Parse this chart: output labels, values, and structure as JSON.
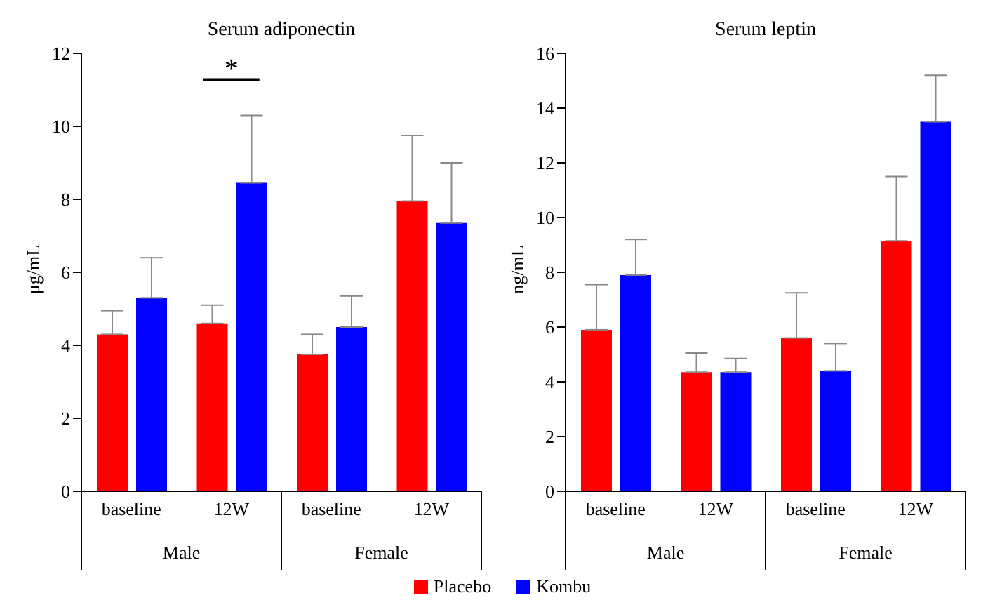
{
  "chart_data": [
    {
      "type": "bar",
      "title": "Serum adiponectin",
      "ylabel": "μg/mL",
      "categories": [
        "baseline",
        "12W",
        "baseline",
        "12W"
      ],
      "ylim": [
        0,
        12
      ],
      "yticks": [
        0,
        2,
        4,
        6,
        8,
        10,
        12
      ],
      "legend": "bottom",
      "series": [
        {
          "name": "Placebo",
          "color": "#ff0000",
          "values": [
            4.3,
            4.6,
            3.75,
            7.95
          ],
          "errors": [
            [
              4.3,
              4.95
            ],
            [
              4.6,
              5.1
            ],
            [
              3.75,
              4.3
            ],
            [
              7.95,
              9.75
            ]
          ]
        },
        {
          "name": "Kombu",
          "color": "#0000ff",
          "values": [
            5.3,
            8.45,
            4.5,
            7.35
          ],
          "errors": [
            [
              5.3,
              6.4
            ],
            [
              8.45,
              10.3
            ],
            [
              4.5,
              5.35
            ],
            [
              7.35,
              9.0
            ]
          ]
        }
      ],
      "annotations": [
        "*",
        "Male",
        "Female"
      ]
    },
    {
      "type": "bar",
      "title": "Serum leptin",
      "ylabel": "ng/mL",
      "categories": [
        "baseline",
        "12W",
        "baseline",
        "12W"
      ],
      "ylim": [
        0,
        16
      ],
      "yticks": [
        0,
        2,
        4,
        6,
        8,
        10,
        12,
        14,
        16
      ],
      "series": [
        {
          "color": "#ff0000",
          "values": [
            5.9,
            4.35,
            5.6,
            9.15
          ],
          "errors": [
            [
              5.9,
              7.55
            ],
            [
              4.35,
              5.05
            ],
            [
              5.6,
              7.25
            ],
            [
              9.15,
              11.5
            ]
          ]
        },
        {
          "color": "#0000ff",
          "values": [
            7.9,
            4.35,
            4.4,
            13.5
          ],
          "errors": [
            [
              7.9,
              9.2
            ],
            [
              4.35,
              4.85
            ],
            [
              4.4,
              5.4
            ],
            [
              13.5,
              15.2
            ]
          ]
        }
      ],
      "annotations": [
        "Male",
        "Female"
      ]
    }
  ]
}
